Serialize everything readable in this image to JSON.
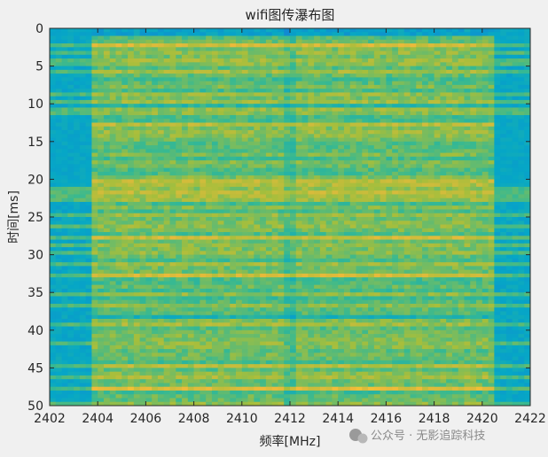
{
  "chart_data": {
    "type": "heatmap",
    "title": "wifi图传瀑布图",
    "xlabel": "频率[MHz]",
    "ylabel": "时间[ms]",
    "xlim": [
      2402,
      2422
    ],
    "ylim": [
      0,
      50
    ],
    "y_reversed": true,
    "xticks": [
      2402,
      2404,
      2406,
      2408,
      2410,
      2412,
      2414,
      2416,
      2418,
      2420,
      2422
    ],
    "yticks": [
      0,
      5,
      10,
      15,
      20,
      25,
      30,
      35,
      40,
      45,
      50
    ],
    "grid": false,
    "colormap": "parula",
    "signal_band_mhz": [
      2403.7,
      2420.4
    ],
    "center_frequency_mhz": 2412,
    "colors": {
      "noise_floor": "#1aa9c4",
      "signal_mid": "#a6c43c",
      "signal_high": "#f2c030"
    }
  },
  "watermark": {
    "text": "公众号 · 无影追踪科技",
    "icon": "wechat-icon"
  }
}
